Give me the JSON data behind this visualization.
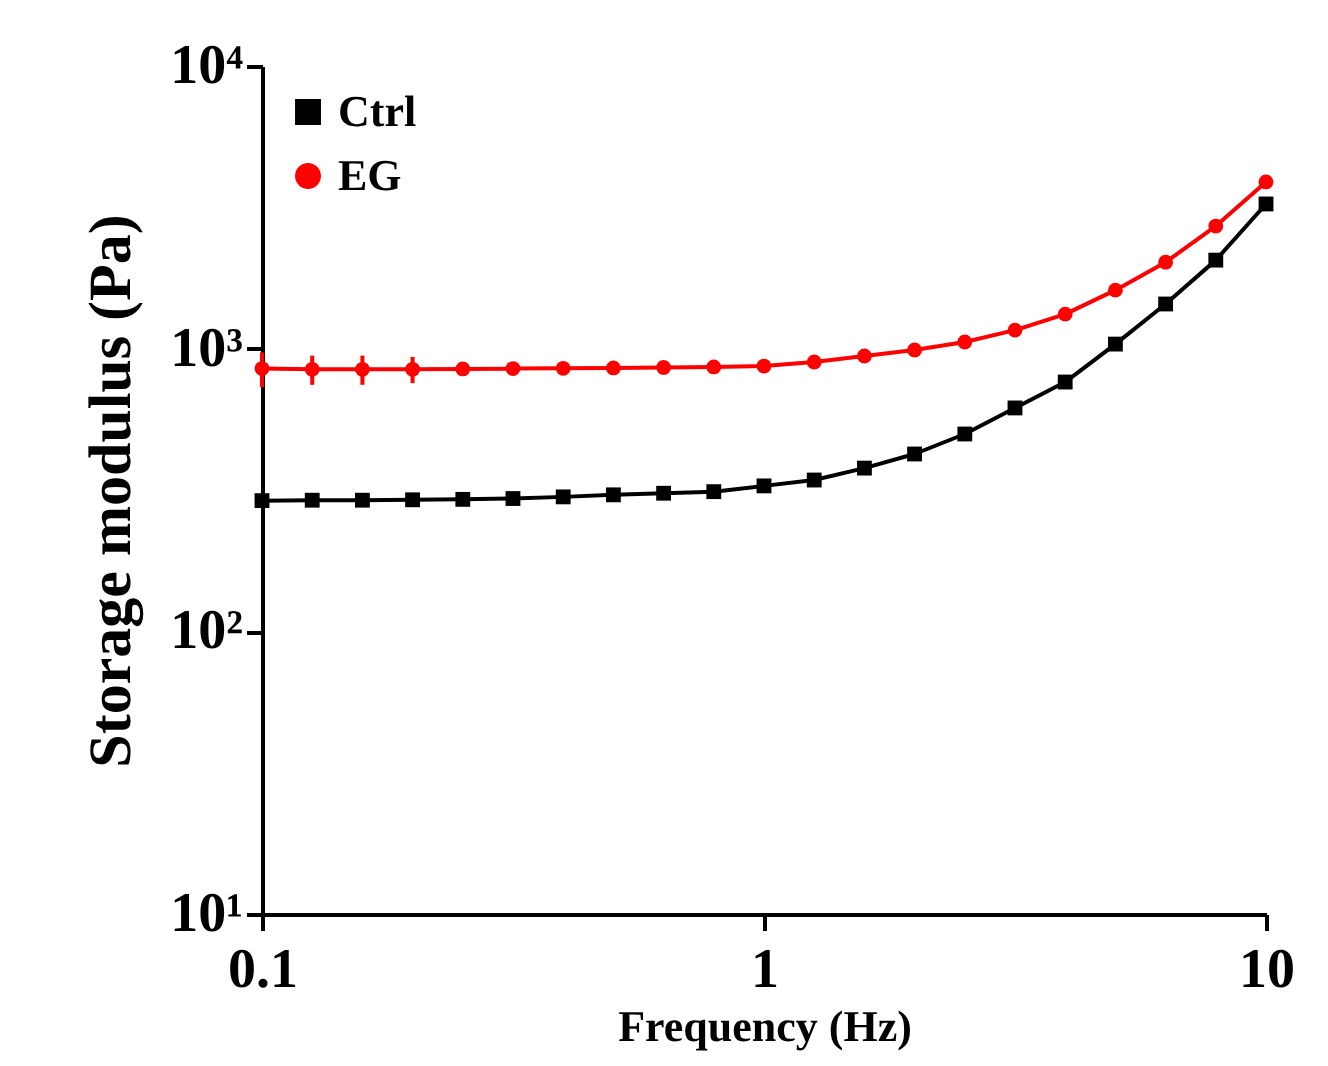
{
  "chart_data": {
    "type": "line",
    "xlabel": "Frequency (Hz)",
    "ylabel": "Storage modulus (Pa)",
    "x": [
      0.1,
      0.1259,
      0.1585,
      0.1995,
      0.2512,
      0.3162,
      0.3981,
      0.5012,
      0.631,
      0.7943,
      1,
      1.259,
      1.585,
      1.995,
      2.512,
      3.162,
      3.981,
      5.012,
      6.31,
      7.943,
      10
    ],
    "series": [
      {
        "name": "Ctrl",
        "color": "#000000",
        "marker": "square",
        "values": [
          290,
          291,
          291,
          292,
          293,
          295,
          299,
          304,
          308,
          312,
          327,
          343,
          378,
          424,
          499,
          617,
          762,
          1038,
          1439,
          2057,
          3250
        ]
      },
      {
        "name": "EG",
        "color": "#ff0000",
        "marker": "circle",
        "values": [
          850,
          845,
          845,
          845,
          848,
          850,
          852,
          855,
          858,
          862,
          868,
          897,
          942,
          989,
          1056,
          1163,
          1325,
          1611,
          2023,
          2714,
          3890
        ],
        "errors": [
          120,
          100,
          100,
          90,
          null,
          null,
          null,
          null,
          null,
          null,
          null,
          null,
          null,
          null,
          null,
          null,
          null,
          null,
          null,
          null,
          null
        ]
      }
    ],
    "log": "xy",
    "xlim": [
      0.1,
      10
    ],
    "xticks": [
      0.1,
      1,
      10
    ],
    "ylim": [
      10,
      10000
    ],
    "yticks": [
      {
        "value": 10,
        "label": "10¹"
      },
      {
        "value": 100,
        "label": "10²"
      },
      {
        "value": 1000,
        "label": "10³"
      },
      {
        "value": 10000,
        "label": "10⁴"
      }
    ],
    "legend": "top left",
    "grid": false,
    "line_style": "solid"
  }
}
